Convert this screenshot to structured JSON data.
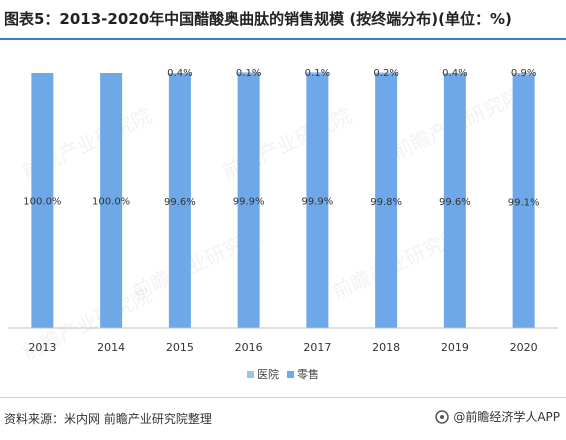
{
  "title": "图表5：2013-2020年中国醋酸奥曲肽的销售规模 (按终端分布)(单位：%)",
  "source": "资料来源：米内网 前瞻产业研究院整理",
  "brand": "@前瞻经济学人APP",
  "watermark": "前瞻产业研究院",
  "colors": {
    "hospital": "#9dc3e6",
    "retail": "#6fa8e8",
    "title_bar": "#3a7fc1"
  },
  "chart_data": {
    "type": "bar",
    "stacked": true,
    "categories": [
      "2013",
      "2014",
      "2015",
      "2016",
      "2017",
      "2018",
      "2019",
      "2020"
    ],
    "series": [
      {
        "name": "医院",
        "values": [
          100.0,
          100.0,
          99.6,
          99.9,
          99.9,
          99.8,
          99.6,
          99.1
        ],
        "labels": [
          "100.0%",
          "100.0%",
          "99.6%",
          "99.9%",
          "99.9%",
          "99.8%",
          "99.6%",
          "99.1%"
        ]
      },
      {
        "name": "零售",
        "values": [
          0,
          0,
          0.4,
          0.1,
          0.1,
          0.2,
          0.4,
          0.9
        ],
        "labels": [
          "",
          "",
          "0.4%",
          "0.1%",
          "0.1%",
          "0.2%",
          "0.4%",
          "0.9%"
        ]
      }
    ],
    "ylim": [
      0,
      100
    ],
    "legend_position": "bottom"
  }
}
